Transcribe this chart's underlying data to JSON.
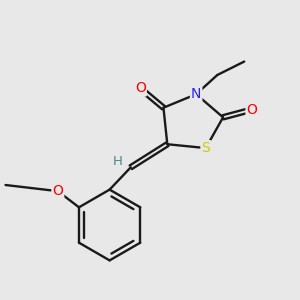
{
  "background_color": "#e8e8e8",
  "bond_color": "#1a1a1a",
  "atom_colors": {
    "O": "#ff0000",
    "N": "#2222ff",
    "S": "#cccc00",
    "H": "#4a8888",
    "C": "#1a1a1a"
  },
  "figsize": [
    3.0,
    3.0
  ],
  "dpi": 100
}
